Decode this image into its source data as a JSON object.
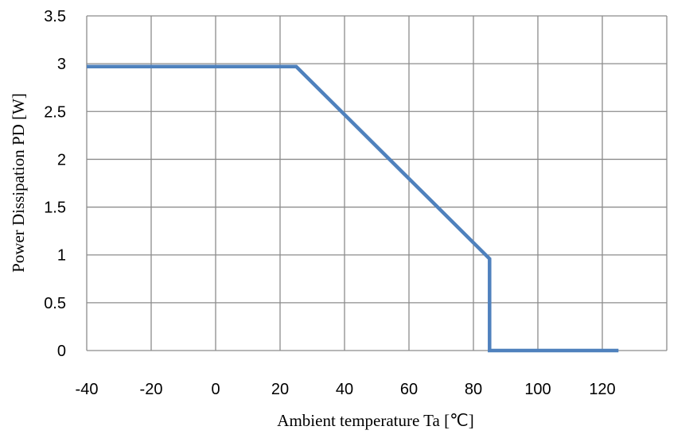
{
  "chart_data": {
    "type": "line",
    "xlabel": "Ambient temperature Ta [℃]",
    "ylabel": "Power Dissipation PD [W]",
    "xlim": [
      -40,
      125
    ],
    "ylim": [
      0,
      3.5
    ],
    "x_ticks": [
      -40,
      -20,
      0,
      20,
      40,
      60,
      80,
      100,
      120
    ],
    "x_tick_labels": [
      "-40",
      "-20",
      "0",
      "20",
      "40",
      "60",
      "80",
      "100",
      "120"
    ],
    "y_ticks": [
      0,
      0.5,
      1,
      1.5,
      2,
      2.5,
      3,
      3.5
    ],
    "y_tick_labels": [
      "0",
      "0.5",
      "1",
      "1.5",
      "2",
      "2.5",
      "3",
      "3.5"
    ],
    "grid": true,
    "legend": "none",
    "series": [
      {
        "color": "#4F81BD",
        "x": [
          -40,
          25,
          85,
          85,
          125
        ],
        "y": [
          2.97,
          2.97,
          0.96,
          0,
          0
        ]
      }
    ]
  }
}
